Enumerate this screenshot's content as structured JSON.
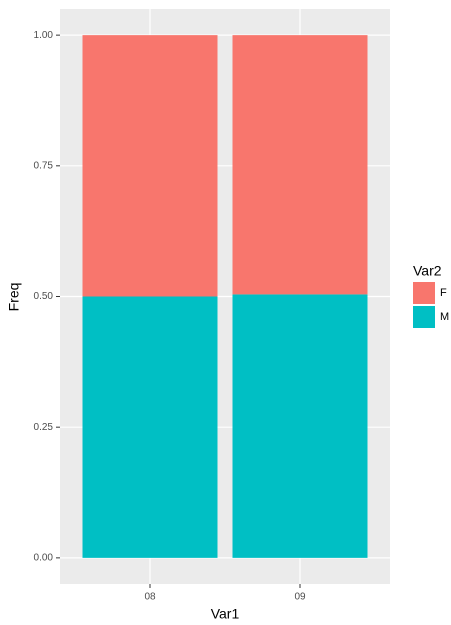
{
  "chart_data": {
    "type": "stacked-bar",
    "x_label": "Var1",
    "y_label": "Freq",
    "categories": [
      "08",
      "09"
    ],
    "series": [
      {
        "name": "F",
        "color": "#f8766d",
        "values": [
          0.5,
          0.496
        ]
      },
      {
        "name": "M",
        "color": "#00bfc4",
        "values": [
          0.5,
          0.504
        ]
      }
    ],
    "legend_title": "Var2",
    "legend": "right",
    "ylim": [
      -0.05,
      1.05
    ],
    "yticks": [
      {
        "value": 0,
        "label": "0.00"
      },
      {
        "value": 0.25,
        "label": "0.25"
      },
      {
        "value": 0.5,
        "label": "0.50"
      },
      {
        "value": 0.75,
        "label": "0.75"
      },
      {
        "value": 1,
        "label": "1.00"
      }
    ],
    "grid": true
  }
}
